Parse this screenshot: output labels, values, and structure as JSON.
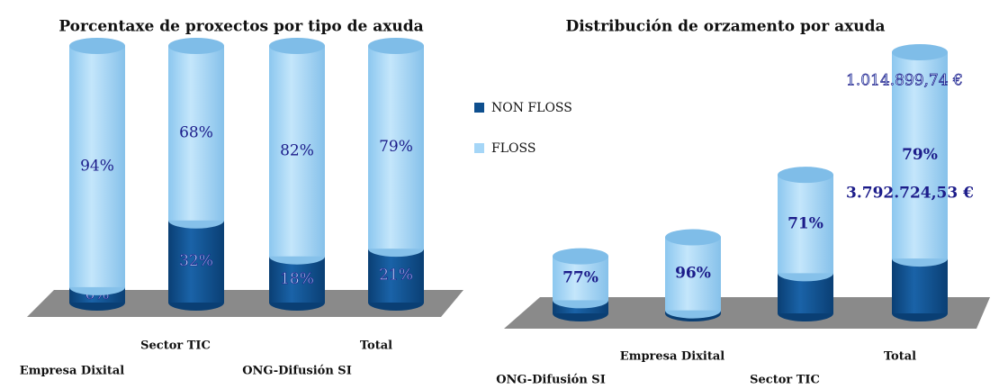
{
  "chart_data": [
    {
      "type": "cylinder-stacked",
      "title": "Porcentaxe de  proxectos por tipo de axuda",
      "categories": [
        "Empresa Dixital",
        "Sector TIC",
        "ONG-Difusión SI",
        "Total"
      ],
      "series": [
        {
          "name": "NON FLOSS",
          "color": "#0e4f8e",
          "values": [
            6,
            32,
            18,
            21
          ],
          "value_labels": [
            "6%",
            "32%",
            "18%",
            "21%"
          ]
        },
        {
          "name": "FLOSS",
          "color": "#a5d6f7",
          "values": [
            94,
            68,
            82,
            79
          ],
          "value_labels": [
            "94%",
            "68%",
            "82%",
            "79%"
          ]
        }
      ]
    },
    {
      "type": "cylinder-stacked",
      "title": "Distribución de orzamento por axuda",
      "categories": [
        "ONG-Difusión SI",
        "Empresa Dixital",
        "Sector TIC",
        "Total"
      ],
      "category_totals": [
        1050000,
        1400000,
        2550000,
        4807624.27
      ],
      "series": [
        {
          "name": "NON FLOSS",
          "color": "#0e4f8e",
          "values": [
            23,
            4,
            29,
            21
          ],
          "value_labels": [
            "23%",
            "4%",
            "29%",
            "21%"
          ]
        },
        {
          "name": "FLOSS",
          "color": "#a5d6f7",
          "values": [
            77,
            96,
            71,
            79
          ],
          "value_labels": [
            "77%",
            "96%",
            "71%",
            "79%"
          ]
        }
      ],
      "annotations": [
        "1.014.899,74 €",
        "3.792.724,53 €"
      ],
      "legend": "left"
    }
  ]
}
